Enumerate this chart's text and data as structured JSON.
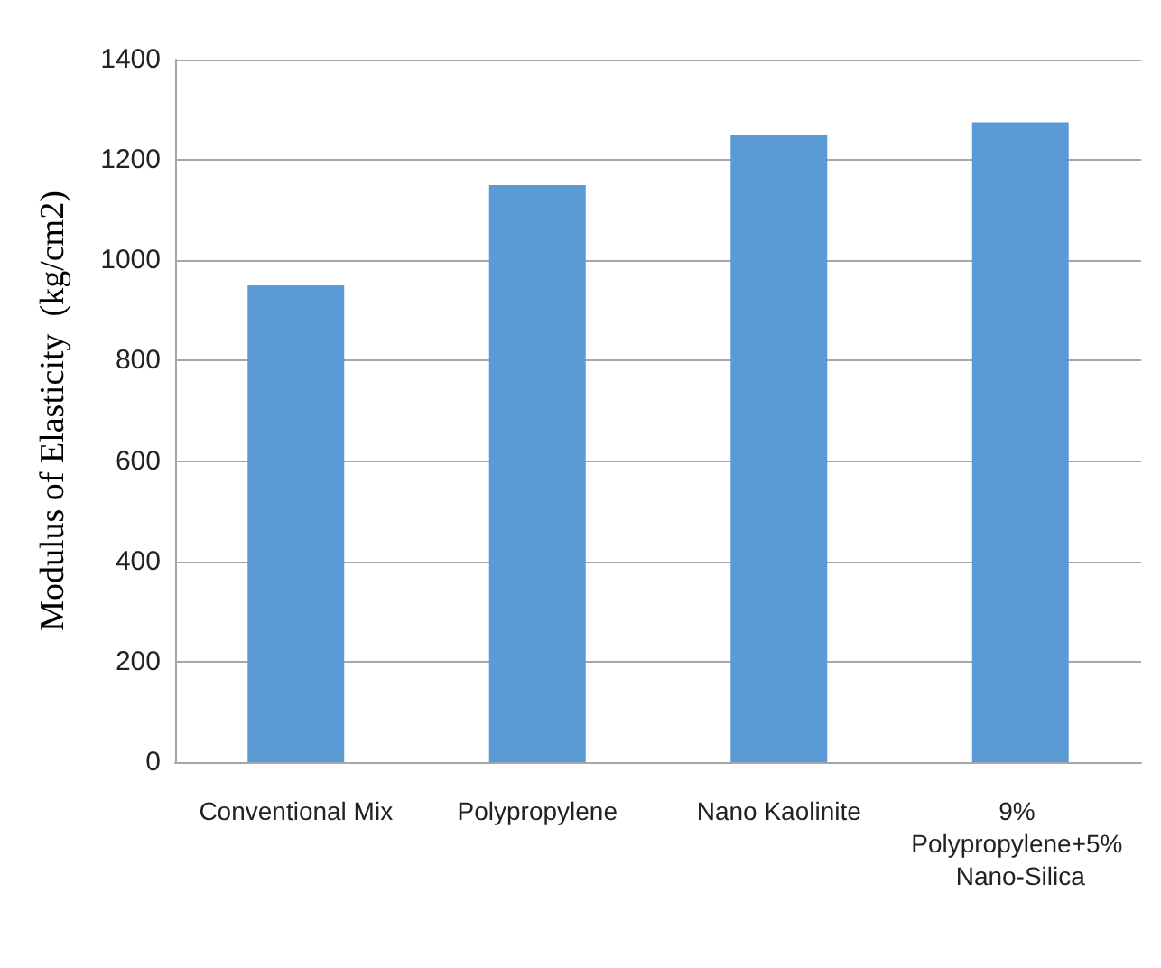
{
  "chart_data": {
    "type": "bar",
    "ylabel": "Modulus of Elasticity  (kg/cm2)",
    "categories": [
      "Conventional Mix",
      "Polypropylene",
      "Nano Kaolinite",
      "9% Polypropylene+5% Nano-Silica"
    ],
    "values": [
      950,
      1150,
      1250,
      1275
    ],
    "color": "#5b9bd5",
    "ylim": [
      0,
      1400
    ],
    "yticks": [
      0,
      200,
      400,
      600,
      800,
      1000,
      1200,
      1400
    ],
    "grid": "y"
  }
}
